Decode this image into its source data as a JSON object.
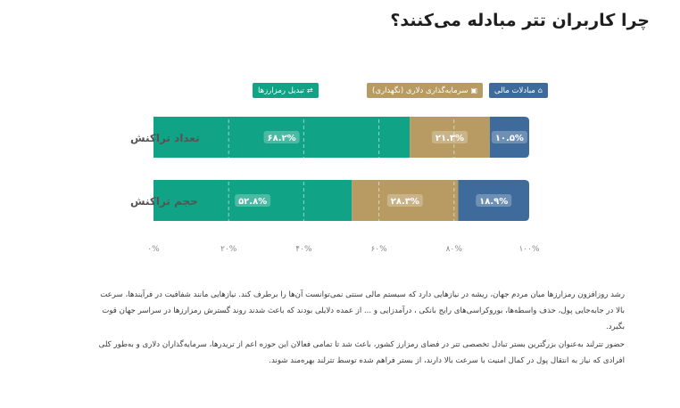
{
  "title": "چرا کاربران تتر مبادله می‌کنند؟",
  "legend": [
    {
      "label": "تبدیل رمزارزها",
      "color": "#10a385",
      "icon": "exchange-icon"
    },
    {
      "label": "سرمایه‌گذاری دلاری (نگهداری)",
      "color": "#b79b63",
      "icon": "wallet-icon"
    },
    {
      "label": "مبادلات مالی",
      "color": "#3f6b9c",
      "icon": "bank-icon"
    }
  ],
  "chart_data": {
    "type": "bar",
    "orientation": "horizontal",
    "stacked": true,
    "categories": [
      "تعداد تراکنش",
      "حجم تراکنش"
    ],
    "series": [
      {
        "name": "تبدیل رمزارزها",
        "values": [
          68.2,
          52.8
        ],
        "labels": [
          "۶۸.۲%",
          "۵۲.۸%"
        ],
        "color": "#10a385"
      },
      {
        "name": "سرمایه‌گذاری دلاری (نگهداری)",
        "values": [
          21.3,
          28.3
        ],
        "labels": [
          "۲۱.۳%",
          "۲۸.۳%"
        ],
        "color": "#b79b63"
      },
      {
        "name": "مبادلات مالی",
        "values": [
          10.5,
          18.9
        ],
        "labels": [
          "۱۰.۵%",
          "۱۸.۹%"
        ],
        "color": "#3f6b9c"
      }
    ],
    "xlim": [
      0,
      100
    ],
    "ticks": [
      0,
      20,
      40,
      60,
      80,
      100
    ],
    "tick_labels": [
      "۰%",
      "۲۰%",
      "۴۰%",
      "۶۰%",
      "۸۰%",
      "۱۰۰%"
    ],
    "grid": true
  },
  "paragraphs": [
    "رشد روزافزون رمزارزها میان مردم جهان، ریشه در نیازهایی دارد که سیستم مالی سنتی نمی‌توانست آن‌ها را برطرف کند. نیازهایی مانند شفافیت در فرآیندها، سرعت بالا در جابه‌جایی پول، حذف واسطه‌ها، بوروکراسی‌های رایج بانکی ، درآمدزایی و ... از عمده دلایلی بودند که باعث شدند روند گسترش رمزارزها در سراسر جهان قوت بگیرد.",
    "حضور تترلند به‌عنوان بزرگترین بستر تبادل تخصصی تتر در فضای رمزارز کشور، باعث شد تا تمامی فعالان این حوزه اعم از تریدرها، سرمایه‌گذاران دلاری و به‌طور کلی افرادی که نیاز به انتقال پول در کمال امنیت با سرعت بالا دارند، از بستر فراهم شده توسط تترلند بهره‌مند شوند."
  ]
}
